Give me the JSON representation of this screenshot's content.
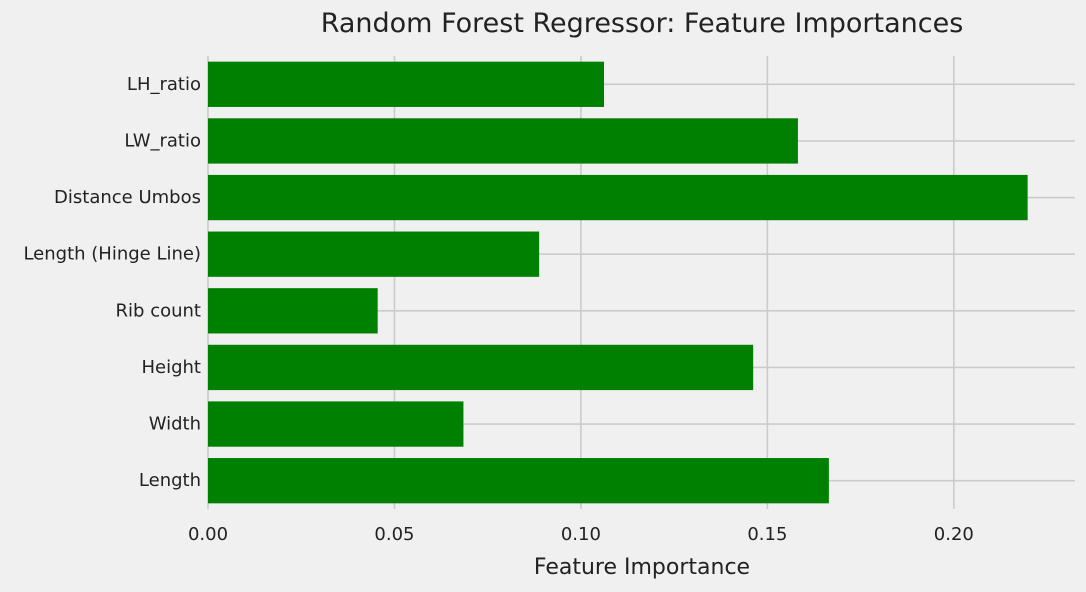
{
  "chart_data": {
    "type": "bar",
    "orientation": "horizontal",
    "title": "Random Forest Regressor: Feature Importances",
    "xlabel": "Feature Importance",
    "ylabel": "",
    "categories": [
      "Length",
      "Width",
      "Height",
      "Rib count",
      "Length (Hinge Line)",
      "Distance Umbos",
      "LW_ratio",
      "LH_ratio"
    ],
    "values": [
      0.1665,
      0.0685,
      0.1462,
      0.0455,
      0.0888,
      0.2198,
      0.1582,
      0.1062
    ],
    "xlim": [
      0,
      0.2325
    ],
    "xticks": [
      0.0,
      0.05,
      0.1,
      0.15,
      0.2
    ],
    "xtick_labels": [
      "0.00",
      "0.05",
      "0.10",
      "0.15",
      "0.20"
    ],
    "grid": true,
    "bar_color": "#008000",
    "grid_color": "#cbcbcb",
    "background_color": "#f0f0f0"
  }
}
